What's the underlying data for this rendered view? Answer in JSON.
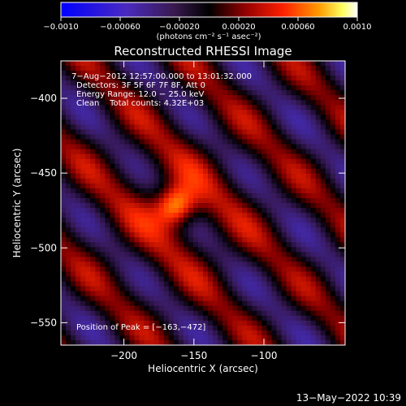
{
  "chart_data": {
    "type": "heatmap",
    "title": "Reconstructed RHESSI Image",
    "xlabel": "Heliocentric X (arcsec)",
    "ylabel": "Heliocentric Y (arcsec)",
    "xlim": [
      -245,
      -42
    ],
    "ylim": [
      -565,
      -375
    ],
    "x_ticks": [
      -200,
      -150,
      -100
    ],
    "x_tick_labels": [
      "−200",
      "−150",
      "−100"
    ],
    "y_ticks": [
      -400,
      -450,
      -500,
      -550
    ],
    "y_tick_labels": [
      "−400",
      "−450",
      "−500",
      "−550"
    ],
    "colorbar": {
      "min": -0.001,
      "max": 0.001,
      "ticks": [
        -0.001,
        -0.0006,
        -0.0002,
        0.0002,
        0.0006,
        0.001
      ],
      "tick_labels": [
        "−0.0010",
        "−0.00060",
        "−0.00020",
        "0.00020",
        "0.00060",
        "0.0010"
      ],
      "unit_label": "(photons cm⁻² s⁻¹ asec⁻²)",
      "colors": [
        "#0000ff",
        "#6a2aa8",
        "#000000",
        "#8a0000",
        "#ff1a00",
        "#ff8c00",
        "#ffff80",
        "#ffffff"
      ]
    },
    "annotations": {
      "time_range": "7−Aug−2012 12:57:00.000 to 13:01:32.000",
      "detectors": "Detectors: 3F 5F 6F 7F 8F, Att 0",
      "energy_range": "Energy Range: 12.0 − 25.0 keV",
      "clean_counts": "Clean    Total counts: 4.32E+03",
      "peak": "Position of Peak = [−163,−472]"
    },
    "peak": [
      -163,
      -472
    ],
    "background_color": "#000000",
    "image_colormap_note_colors": {
      "low": "#4a2a8c",
      "mid": "#000000",
      "high": "#ff3000",
      "peak": "#ffffff"
    }
  },
  "footer": {
    "date": "13−May−2022 10:39"
  }
}
